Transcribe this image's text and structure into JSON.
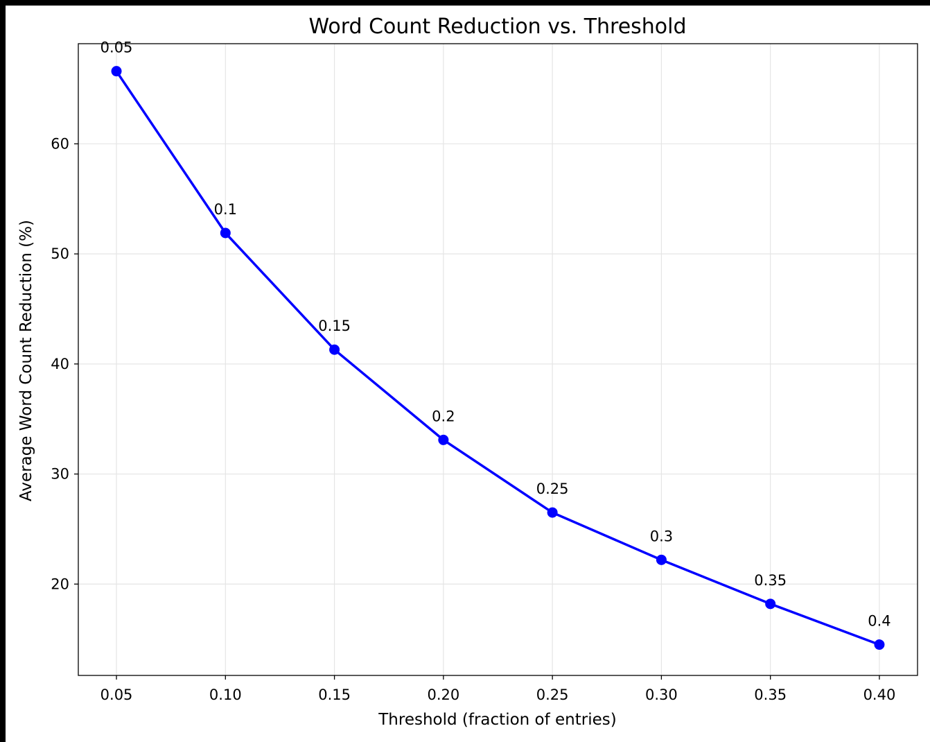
{
  "chart_data": {
    "type": "line",
    "title": "Word Count Reduction vs. Threshold",
    "xlabel": "Threshold (fraction of entries)",
    "ylabel": "Average Word Count Reduction (%)",
    "xlim": [
      0.0325,
      0.4175
    ],
    "ylim": [
      11.7,
      69.1
    ],
    "x_ticks": [
      0.05,
      0.1,
      0.15,
      0.2,
      0.25,
      0.3,
      0.35,
      0.4
    ],
    "x_tick_labels": [
      "0.05",
      "0.10",
      "0.15",
      "0.20",
      "0.25",
      "0.30",
      "0.35",
      "0.40"
    ],
    "y_ticks": [
      20,
      30,
      40,
      50,
      60
    ],
    "y_tick_labels": [
      "20",
      "30",
      "40",
      "50",
      "60"
    ],
    "grid": true,
    "series": [
      {
        "color": "#0000ff",
        "x": [
          0.05,
          0.1,
          0.15,
          0.2,
          0.25,
          0.3,
          0.35,
          0.4
        ],
        "y": [
          66.6,
          51.9,
          41.3,
          33.1,
          26.5,
          22.2,
          18.2,
          14.5
        ],
        "point_labels": [
          "0.05",
          "0.1",
          "0.15",
          "0.2",
          "0.25",
          "0.3",
          "0.35",
          "0.4"
        ]
      }
    ]
  }
}
